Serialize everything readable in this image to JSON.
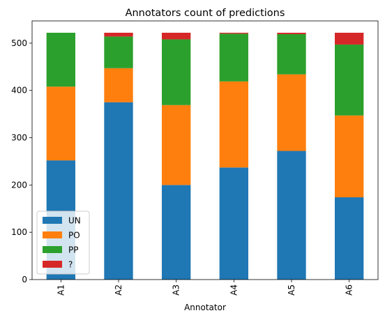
{
  "chart_data": {
    "type": "bar",
    "stacked": true,
    "title": "Annotators count of predictions",
    "xlabel": "Annotator",
    "ylabel": "",
    "categories": [
      "A1",
      "A2",
      "A3",
      "A4",
      "A5",
      "A6"
    ],
    "series": [
      {
        "name": "UN",
        "color": "#1f77b4",
        "values": [
          252,
          375,
          200,
          237,
          272,
          174
        ]
      },
      {
        "name": "PO",
        "color": "#ff7f0e",
        "values": [
          156,
          72,
          169,
          182,
          162,
          173
        ]
      },
      {
        "name": "PP",
        "color": "#2ca02c",
        "values": [
          114,
          67,
          139,
          101,
          85,
          150
        ]
      },
      {
        "name": "?",
        "color": "#d62728",
        "values": [
          0,
          8,
          14,
          2,
          3,
          25
        ]
      }
    ],
    "ylim": [
      0,
      547
    ],
    "yticks": [
      0,
      100,
      200,
      300,
      400,
      500
    ],
    "legend_position": "lower-left",
    "grid": false
  }
}
